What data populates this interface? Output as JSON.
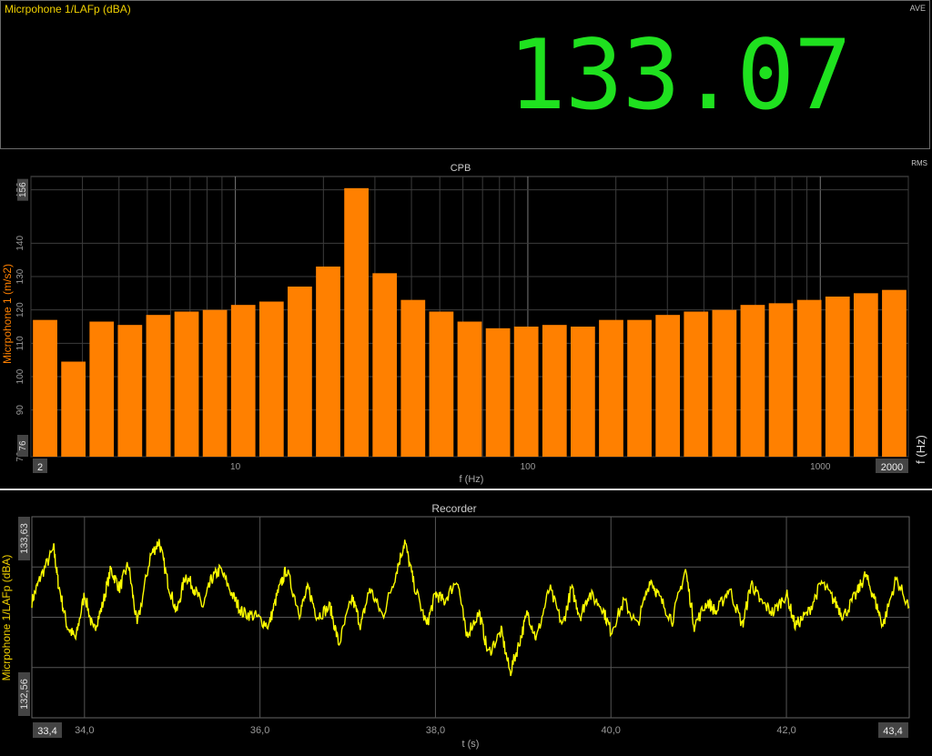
{
  "meter": {
    "title": "Micrpohone 1/LAFp (dBA)",
    "mode": "AVE",
    "value": "133.07",
    "value_color": "#1fe11f"
  },
  "chart_data": [
    {
      "type": "bar",
      "title": "CPB",
      "mode_label": "RMS",
      "xlabel": "f (Hz)",
      "xlabel_right": "f (Hz)",
      "ylabel": "Micrpohone 1 (m/s2)",
      "x_scale": "log",
      "xlim": [
        2,
        2000
      ],
      "xlim_labels": [
        "2",
        "2000"
      ],
      "ylim": [
        76,
        160
      ],
      "y_ticks": [
        76,
        90,
        100,
        110,
        120,
        130,
        140,
        156
      ],
      "x_ticks": [
        10,
        100,
        1000
      ],
      "x_tick_labels": [
        "10",
        "100",
        "1000"
      ],
      "bar_color": "#ff8000",
      "grid": true,
      "categories_hz": [
        2,
        2.5,
        3.15,
        4,
        5,
        6.3,
        8,
        10,
        12.5,
        16,
        20,
        25,
        31.5,
        40,
        50,
        63,
        80,
        100,
        125,
        160,
        200,
        250,
        315,
        400,
        500,
        630,
        800,
        1000,
        1250,
        1600,
        2000
      ],
      "values": [
        117,
        104.5,
        116.5,
        115.5,
        118.5,
        119.5,
        120,
        121.5,
        122.5,
        127,
        133,
        156.5,
        131,
        123,
        119.5,
        116.5,
        114.5,
        115,
        115.5,
        115,
        117,
        117,
        118.5,
        119.5,
        120,
        121.5,
        122,
        123,
        124,
        125,
        126
      ]
    },
    {
      "type": "line",
      "title": "Recorder",
      "xlabel": "t (s)",
      "ylabel": "Micrpohone 1/LAFp (dBA)",
      "xlim": [
        33.4,
        43.4
      ],
      "xlim_labels": [
        "33,4",
        "43,4"
      ],
      "x_ticks": [
        34.0,
        36.0,
        38.0,
        40.0,
        42.0
      ],
      "x_tick_labels": [
        "34,0",
        "36,0",
        "38,0",
        "40,0",
        "42,0"
      ],
      "ylim": [
        132.56,
        133.63
      ],
      "y_tick_labels": [
        "132,56",
        "133,63"
      ],
      "line_color": "#ffff00",
      "grid": true,
      "series": [
        {
          "x": [
            33.4,
            33.5,
            33.65,
            33.7,
            33.8,
            33.9,
            34.0,
            34.1,
            34.2,
            34.3,
            34.4,
            34.5,
            34.6,
            34.75,
            34.85,
            34.95,
            35.05,
            35.15,
            35.25,
            35.35,
            35.45,
            35.55,
            35.7,
            35.8,
            35.95,
            36.1,
            36.2,
            36.3,
            36.45,
            36.55,
            36.65,
            36.8,
            36.9,
            37.05,
            37.15,
            37.25,
            37.4,
            37.55,
            37.65,
            37.75,
            37.9,
            38.0,
            38.1,
            38.25,
            38.35,
            38.5,
            38.6,
            38.75,
            38.85,
            38.95,
            39.05,
            39.15,
            39.3,
            39.45,
            39.55,
            39.65,
            39.75,
            39.9,
            40.0,
            40.15,
            40.3,
            40.45,
            40.55,
            40.7,
            40.85,
            40.95,
            41.1,
            41.2,
            41.35,
            41.5,
            41.6,
            41.7,
            41.85,
            42.0,
            42.1,
            42.25,
            42.4,
            42.55,
            42.65,
            42.8,
            42.9,
            43.0,
            43.1,
            43.25,
            43.4
          ],
          "y": [
            133.18,
            133.31,
            133.46,
            133.28,
            133.05,
            132.98,
            133.22,
            133.02,
            133.15,
            133.35,
            133.25,
            133.38,
            133.05,
            133.42,
            133.5,
            133.28,
            133.12,
            133.32,
            133.25,
            133.15,
            133.3,
            133.35,
            133.2,
            133.12,
            133.1,
            133.05,
            133.22,
            133.35,
            133.12,
            133.25,
            133.1,
            133.15,
            132.95,
            133.2,
            133.05,
            133.25,
            133.1,
            133.33,
            133.5,
            133.28,
            133.05,
            133.22,
            133.18,
            133.3,
            133.0,
            133.12,
            132.9,
            133.02,
            132.8,
            132.95,
            133.12,
            132.98,
            133.25,
            133.05,
            133.25,
            133.1,
            133.22,
            133.15,
            133.02,
            133.18,
            133.05,
            133.3,
            133.2,
            133.08,
            133.35,
            133.05,
            133.18,
            133.12,
            133.25,
            133.05,
            133.28,
            133.18,
            133.12,
            133.22,
            133.05,
            133.12,
            133.28,
            133.18,
            133.1,
            133.22,
            133.32,
            133.2,
            133.05,
            133.3,
            133.15
          ]
        }
      ]
    }
  ]
}
